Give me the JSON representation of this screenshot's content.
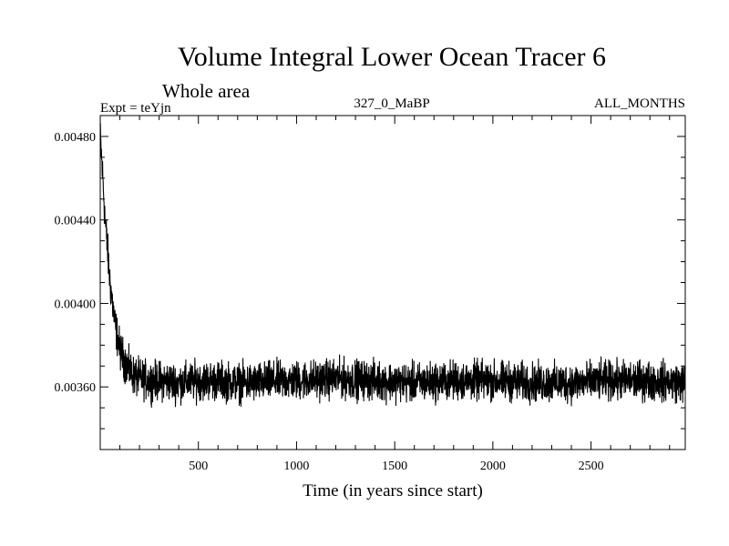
{
  "chart_data": {
    "type": "line",
    "title": "Volume Integral Lower Ocean Tracer 6",
    "subtitle": "Whole area",
    "experiment": "Expt = teYjn",
    "period": "327_0_MaBP",
    "months": "ALL_MONTHS",
    "xlabel": "Time (in years since start)",
    "ylabel": "",
    "xlim": [
      0,
      2980
    ],
    "ylim": [
      0.0033,
      0.0049
    ],
    "x_ticks": [
      500,
      1000,
      1500,
      2000,
      2500
    ],
    "x_tick_labels": [
      "500",
      "1000",
      "1500",
      "2000",
      "2500"
    ],
    "y_ticks": [
      0.0036,
      0.004,
      0.0044,
      0.0048
    ],
    "y_tick_labels": [
      "0.00360",
      "0.00400",
      "0.00440",
      "0.00480"
    ],
    "grid": false,
    "legend": "none",
    "series": [
      {
        "name": "Volume Integral Lower Ocean Tracer 6",
        "x": [
          0,
          10,
          25,
          50,
          75,
          100,
          125,
          150,
          175,
          200,
          250,
          300,
          400,
          500,
          600,
          700,
          800,
          900,
          1000,
          1200,
          1400,
          1600,
          1800,
          2000,
          2200,
          2400,
          2600,
          2800,
          2980
        ],
        "values": [
          0.0048,
          0.00465,
          0.0044,
          0.0041,
          0.0039,
          0.00378,
          0.00372,
          0.00368,
          0.00365,
          0.00364,
          0.00363,
          0.00363,
          0.00362,
          0.00363,
          0.00363,
          0.00362,
          0.00362,
          0.00363,
          0.00363,
          0.00364,
          0.00363,
          0.00362,
          0.00363,
          0.00363,
          0.00362,
          0.00362,
          0.00363,
          0.00363,
          0.00362
        ],
        "noise_amplitude": 0.0001,
        "color": "#000000"
      }
    ]
  }
}
